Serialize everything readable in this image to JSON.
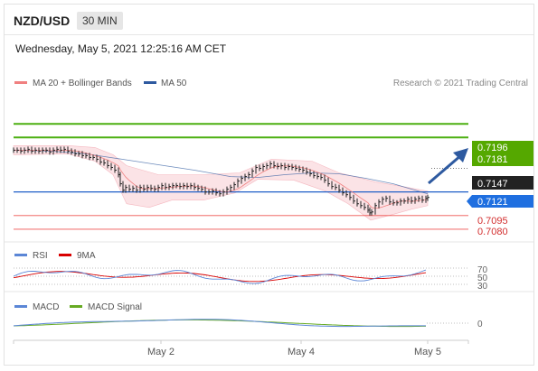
{
  "header": {
    "pair": "NZD/USD",
    "timeframe": "30 MIN"
  },
  "datetime": "Wednesday, May 5, 2021 12:25:16 AM CET",
  "legend": {
    "ma20": "MA 20 + Bollinger Bands",
    "ma50": "MA 50",
    "credit": "Research © 2021 Trading Central",
    "rsi": "RSI",
    "rsi_ma": "9MA",
    "macd": "MACD",
    "macd_signal": "MACD Signal"
  },
  "colors": {
    "ma20": "#f08080",
    "ma50": "#2e5aa0",
    "resistance": "#4caf10",
    "support": "#1f5fc7",
    "target_line": "#ef5350",
    "rsi": "#5b86d6",
    "rsi_ma": "#d90000",
    "macd": "#5b86d6",
    "macd_signal": "#66aa22",
    "arrow": "#2e5aa0",
    "bands": "#fbe3e6"
  },
  "levels": {
    "r1": "0.7196",
    "r2": "0.7181",
    "current": "0.7147",
    "s1": "0.7121",
    "t1": "0.7095",
    "t2": "0.7080"
  },
  "rsi_ticks": [
    "70",
    "50",
    "30"
  ],
  "macd_tick": "0",
  "x_labels": [
    "May 2",
    "May 4",
    "May 5"
  ],
  "chart_data": {
    "type": "line",
    "y_range": [
      0.7066,
      0.7228
    ],
    "price": [
      [
        0,
        0.7167
      ],
      [
        4,
        0.7167
      ],
      [
        8,
        0.7166
      ],
      [
        12,
        0.7167
      ],
      [
        16,
        0.7168
      ],
      [
        20,
        0.7166
      ],
      [
        24,
        0.7167
      ],
      [
        28,
        0.7166
      ],
      [
        32,
        0.7167
      ],
      [
        36,
        0.7167
      ],
      [
        40,
        0.7165
      ],
      [
        44,
        0.7167
      ],
      [
        48,
        0.7168
      ],
      [
        52,
        0.7167
      ],
      [
        56,
        0.7168
      ],
      [
        60,
        0.7166
      ],
      [
        64,
        0.7165
      ],
      [
        68,
        0.7163
      ],
      [
        72,
        0.7163
      ],
      [
        76,
        0.7161
      ],
      [
        80,
        0.7161
      ],
      [
        84,
        0.7159
      ],
      [
        88,
        0.7159
      ],
      [
        92,
        0.7157
      ],
      [
        96,
        0.7154
      ],
      [
        100,
        0.7153
      ],
      [
        104,
        0.715
      ],
      [
        108,
        0.7148
      ],
      [
        112,
        0.7145
      ],
      [
        116,
        0.714
      ],
      [
        118,
        0.713
      ],
      [
        121,
        0.7123
      ],
      [
        124,
        0.7126
      ],
      [
        128,
        0.7124
      ],
      [
        132,
        0.7125
      ],
      [
        136,
        0.7123
      ],
      [
        140,
        0.7126
      ],
      [
        144,
        0.7124
      ],
      [
        148,
        0.7126
      ],
      [
        152,
        0.7125
      ],
      [
        156,
        0.7124
      ],
      [
        160,
        0.7126
      ],
      [
        164,
        0.7128
      ],
      [
        168,
        0.7126
      ],
      [
        172,
        0.7127
      ],
      [
        176,
        0.7128
      ],
      [
        180,
        0.7128
      ],
      [
        184,
        0.7127
      ],
      [
        188,
        0.7128
      ],
      [
        192,
        0.7127
      ],
      [
        196,
        0.7128
      ],
      [
        200,
        0.7126
      ],
      [
        204,
        0.7125
      ],
      [
        208,
        0.7124
      ],
      [
        212,
        0.7121
      ],
      [
        216,
        0.7121
      ],
      [
        220,
        0.7122
      ],
      [
        224,
        0.712
      ],
      [
        228,
        0.7119
      ],
      [
        232,
        0.7121
      ],
      [
        236,
        0.7124
      ],
      [
        240,
        0.7126
      ],
      [
        244,
        0.7129
      ],
      [
        248,
        0.7133
      ],
      [
        252,
        0.7136
      ],
      [
        256,
        0.7138
      ],
      [
        260,
        0.714
      ],
      [
        264,
        0.7144
      ],
      [
        268,
        0.7148
      ],
      [
        272,
        0.7147
      ],
      [
        276,
        0.7149
      ],
      [
        280,
        0.715
      ],
      [
        284,
        0.7152
      ],
      [
        288,
        0.715
      ],
      [
        292,
        0.7149
      ],
      [
        296,
        0.715
      ],
      [
        300,
        0.7148
      ],
      [
        304,
        0.7149
      ],
      [
        308,
        0.7148
      ],
      [
        312,
        0.7147
      ],
      [
        316,
        0.7146
      ],
      [
        320,
        0.7145
      ],
      [
        324,
        0.7143
      ],
      [
        328,
        0.7141
      ],
      [
        332,
        0.7139
      ],
      [
        336,
        0.7138
      ],
      [
        340,
        0.7137
      ],
      [
        344,
        0.7134
      ],
      [
        348,
        0.713
      ],
      [
        352,
        0.7127
      ],
      [
        356,
        0.7126
      ],
      [
        360,
        0.7123
      ],
      [
        364,
        0.712
      ],
      [
        368,
        0.7118
      ],
      [
        372,
        0.7115
      ],
      [
        376,
        0.7111
      ],
      [
        380,
        0.7108
      ],
      [
        384,
        0.7106
      ],
      [
        388,
        0.7104
      ],
      [
        392,
        0.7101
      ],
      [
        394,
        0.7098
      ],
      [
        396,
        0.7099
      ],
      [
        400,
        0.7106
      ],
      [
        404,
        0.711
      ],
      [
        408,
        0.7113
      ],
      [
        412,
        0.7114
      ],
      [
        416,
        0.711
      ],
      [
        420,
        0.7109
      ],
      [
        424,
        0.7109
      ],
      [
        428,
        0.7111
      ],
      [
        432,
        0.7111
      ],
      [
        436,
        0.7113
      ],
      [
        440,
        0.7111
      ],
      [
        444,
        0.7113
      ],
      [
        448,
        0.7114
      ],
      [
        452,
        0.7112
      ],
      [
        456,
        0.7114
      ],
      [
        458,
        0.7115
      ]
    ],
    "ma50": [
      [
        0,
        0.7167
      ],
      [
        40,
        0.7166
      ],
      [
        80,
        0.7163
      ],
      [
        120,
        0.7157
      ],
      [
        160,
        0.7151
      ],
      [
        200,
        0.7145
      ],
      [
        240,
        0.7138
      ],
      [
        270,
        0.7137
      ],
      [
        300,
        0.714
      ],
      [
        330,
        0.7142
      ],
      [
        360,
        0.7141
      ],
      [
        390,
        0.7136
      ],
      [
        420,
        0.713
      ],
      [
        458,
        0.7119
      ]
    ],
    "bb_upper": [
      [
        0,
        0.7172
      ],
      [
        60,
        0.7172
      ],
      [
        90,
        0.717
      ],
      [
        110,
        0.7162
      ],
      [
        125,
        0.715
      ],
      [
        160,
        0.714
      ],
      [
        210,
        0.714
      ],
      [
        250,
        0.7142
      ],
      [
        285,
        0.7157
      ],
      [
        330,
        0.7155
      ],
      [
        360,
        0.7142
      ],
      [
        385,
        0.7136
      ],
      [
        400,
        0.7132
      ],
      [
        430,
        0.7127
      ],
      [
        458,
        0.7122
      ]
    ],
    "bb_lower": [
      [
        0,
        0.7162
      ],
      [
        60,
        0.7163
      ],
      [
        90,
        0.7155
      ],
      [
        110,
        0.714
      ],
      [
        125,
        0.7108
      ],
      [
        150,
        0.7104
      ],
      [
        175,
        0.7112
      ],
      [
        210,
        0.7112
      ],
      [
        245,
        0.712
      ],
      [
        270,
        0.7135
      ],
      [
        310,
        0.7134
      ],
      [
        345,
        0.7122
      ],
      [
        370,
        0.7108
      ],
      [
        395,
        0.709
      ],
      [
        415,
        0.7095
      ],
      [
        440,
        0.7102
      ],
      [
        458,
        0.7106
      ]
    ]
  }
}
